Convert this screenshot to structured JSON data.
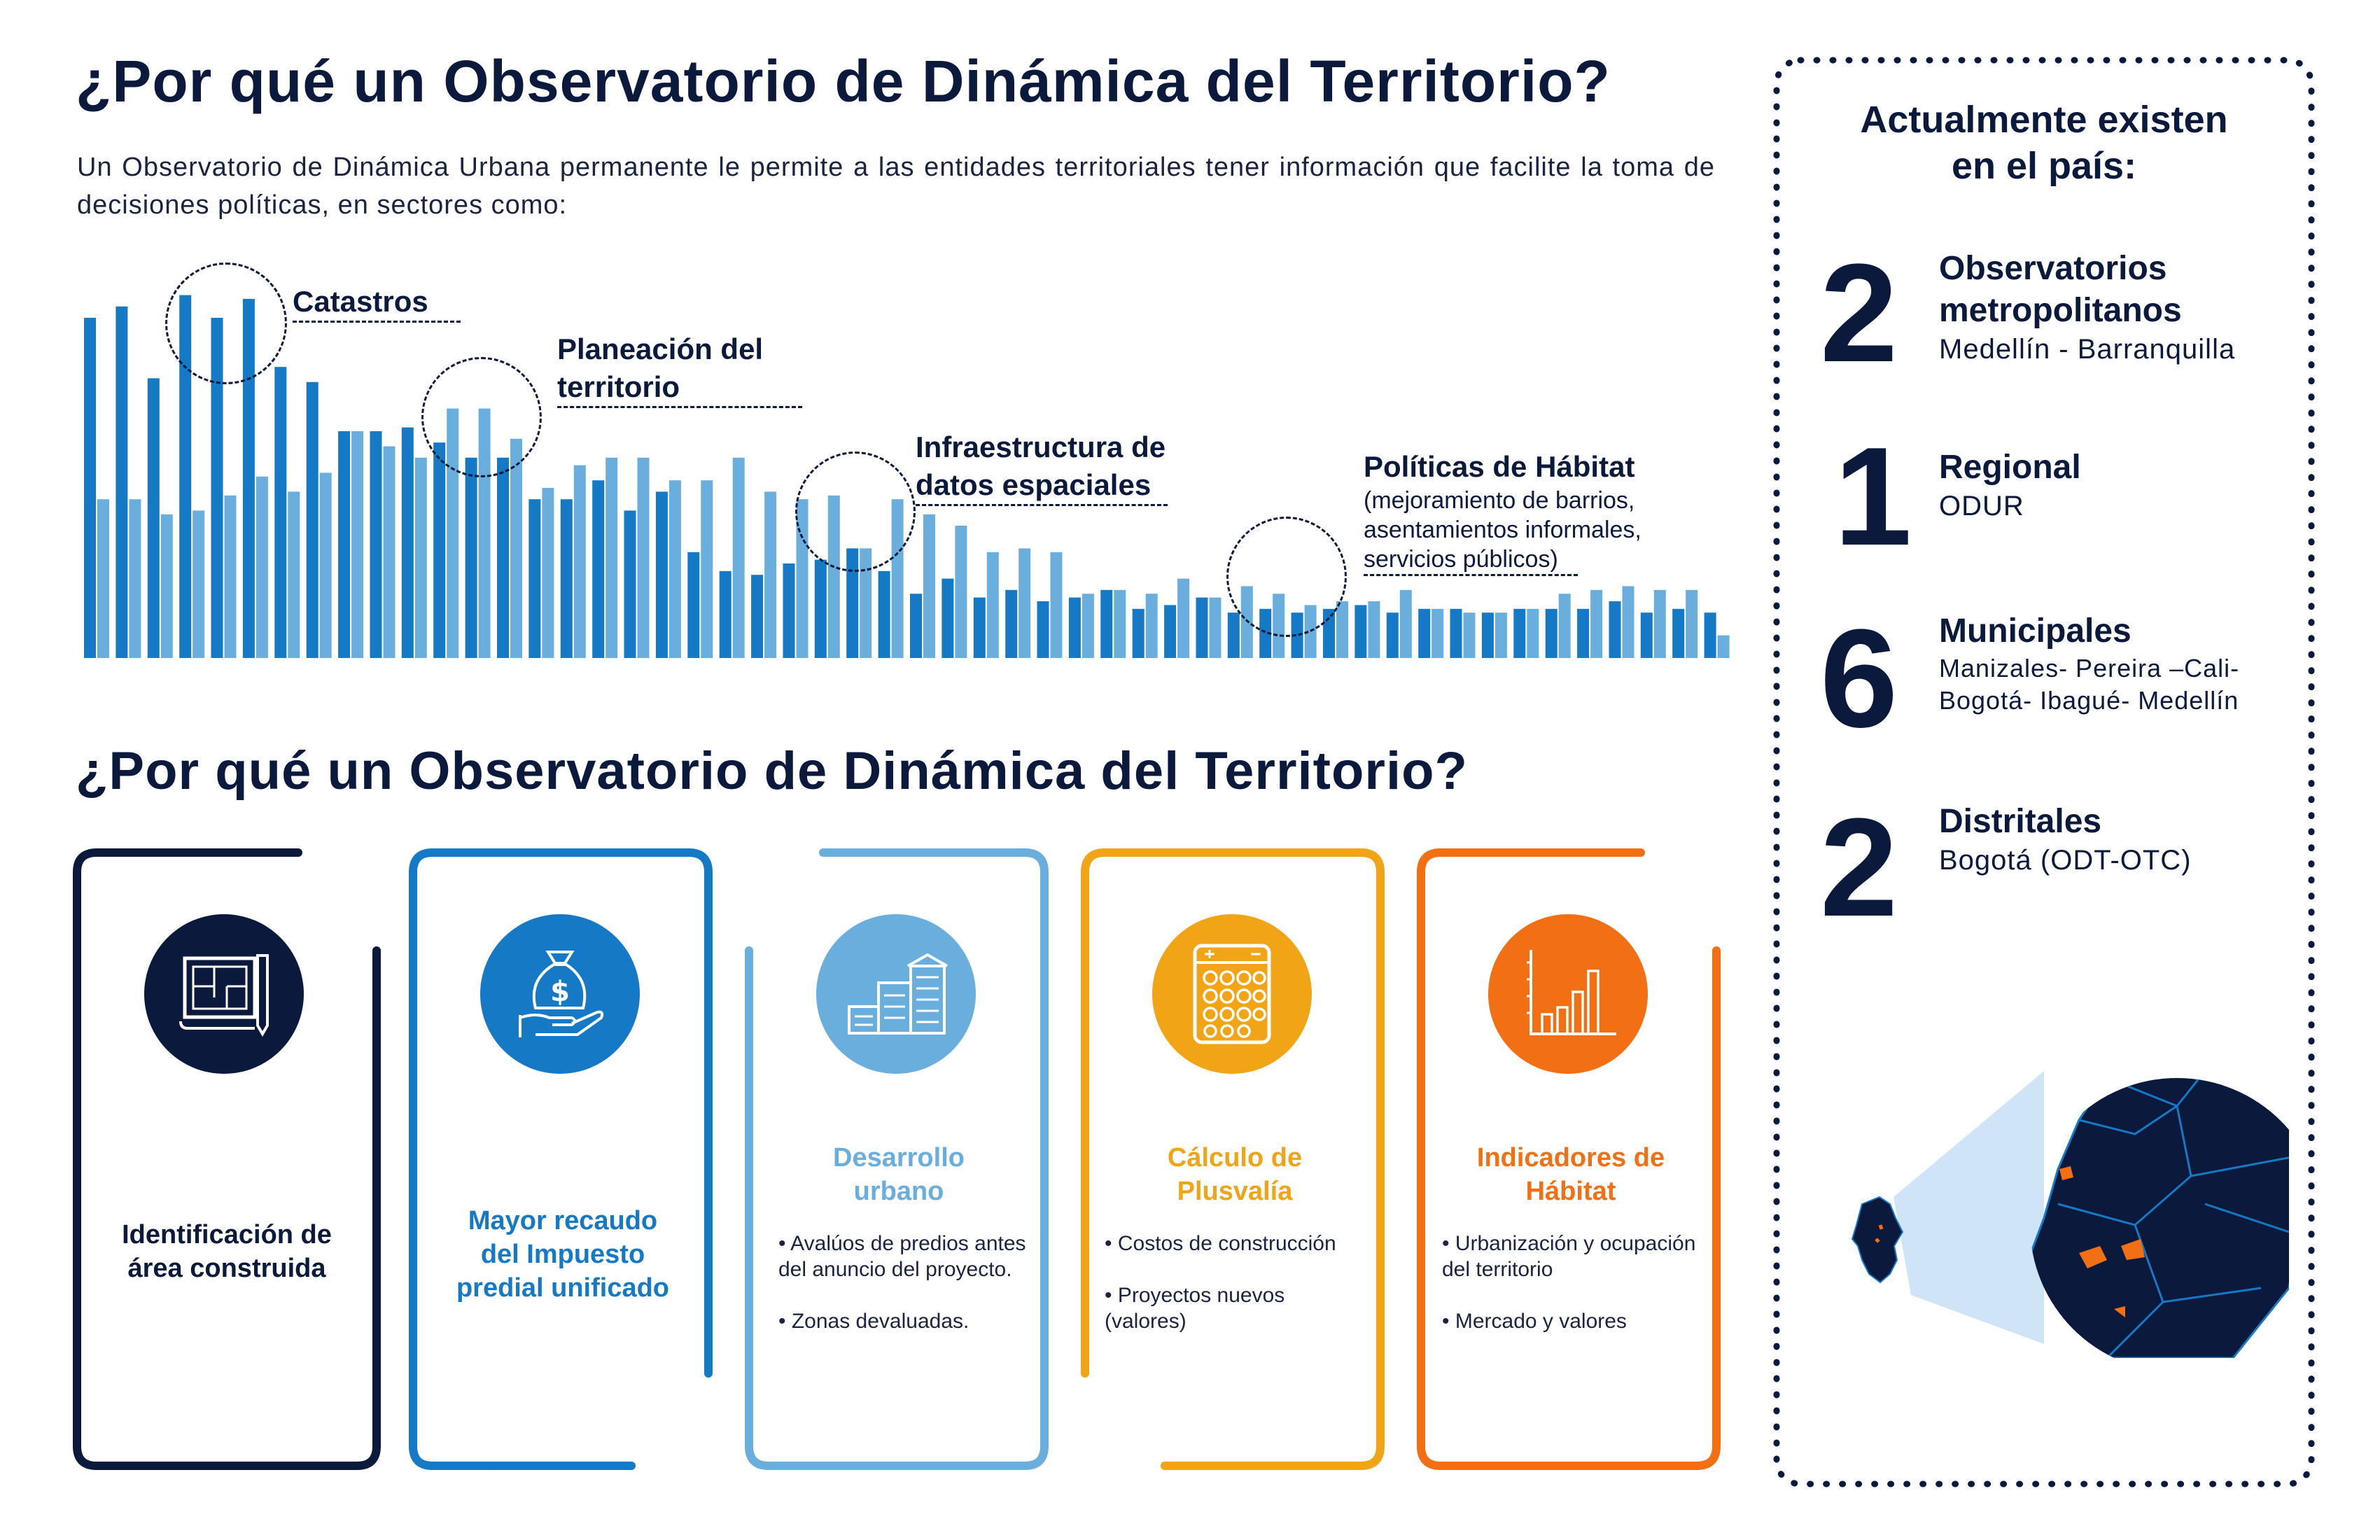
{
  "title_top": "¿Por qué un Observatorio de Dinámica del Territorio?",
  "intro": "Un Observatorio de Dinámica Urbana permanente le permite a las entidades territoriales tener información que facilite la toma de decisiones políticas, en sectores como:",
  "callouts": {
    "catastros": "Catastros",
    "planeacion": [
      "Planeación del",
      "territorio"
    ],
    "infraestructura": [
      "Infraestructura de",
      "datos espaciales"
    ],
    "politicas_title": "Políticas de Hábitat",
    "politicas_sub": [
      "(mejoramiento de barrios,",
      "asentamientos informales,",
      "servicios públicos)"
    ]
  },
  "title_mid": "¿Por qué un Observatorio de Dinámica del Territorio?",
  "cards": [
    {
      "title": [
        "Identificación de",
        "área construida"
      ],
      "color": "#0b1a3c",
      "icon": "blueprint-icon",
      "bullets": []
    },
    {
      "title": [
        "Mayor recaudo",
        "del Impuesto",
        "predial unificado"
      ],
      "color": "#1579c6",
      "icon": "money-bag-hand-icon",
      "bullets": []
    },
    {
      "title": [
        "Desarrollo",
        "urbano"
      ],
      "color": "#6aaede",
      "icon": "buildings-icon",
      "bullets": [
        "• Avalúos de predios antes del anuncio del proyecto.",
        "• Zonas devaluadas."
      ]
    },
    {
      "title": [
        "Cálculo de",
        "Plusvalía"
      ],
      "color": "#f0a416",
      "icon": "calculator-icon",
      "bullets": [
        "• Costos de construcción",
        "• Proyectos nuevos (valores)"
      ]
    },
    {
      "title": [
        "Indicadores de",
        "Hábitat"
      ],
      "color": "#f26f14",
      "icon": "bar-chart-icon",
      "bullets": [
        "• Urbanización y ocupación del territorio",
        "• Mercado y valores"
      ]
    }
  ],
  "side": {
    "heading": [
      "Actualmente existen",
      "en el país:"
    ],
    "stats": [
      {
        "num": "2",
        "title": [
          "Observatorios",
          "metropolitanos"
        ],
        "sub": [
          "Medellín - Barranquilla"
        ]
      },
      {
        "num": "1",
        "title": [
          "Regional"
        ],
        "sub": [
          "ODUR"
        ]
      },
      {
        "num": "6",
        "title": [
          "Municipales"
        ],
        "sub": [
          "Manizales- Pereira –Cali-",
          "Bogotá- Ibagué- Medellín"
        ]
      },
      {
        "num": "2",
        "title": [
          "Distritales"
        ],
        "sub": [
          "Bogotá (ODT-OTC)"
        ]
      }
    ]
  },
  "colors": {
    "navy": "#0b1a3c",
    "blue": "#1579c6",
    "light_blue": "#6aaede",
    "yellow": "#f0a416",
    "orange": "#f26f14"
  },
  "chart_data": {
    "type": "bar",
    "title": "",
    "xlabel": "",
    "ylabel": "",
    "grid": false,
    "note": "decorative paired bar background",
    "ylim": [
      0,
      100
    ],
    "series": [
      {
        "values": [
          90,
          93,
          74,
          96,
          90,
          95,
          77,
          73,
          60,
          60,
          61,
          57,
          53,
          53,
          42,
          42,
          47,
          39,
          44,
          28,
          23,
          22,
          25,
          26,
          29,
          23,
          17,
          21,
          16,
          18,
          15,
          16,
          18,
          13,
          14,
          16,
          12,
          13,
          12,
          13,
          14,
          12,
          13,
          13,
          12,
          13,
          13,
          13,
          15,
          12,
          13,
          12
        ]
      },
      {
        "values": [
          42,
          42,
          38,
          39,
          43,
          48,
          44,
          49,
          60,
          56,
          53,
          66,
          66,
          58,
          45,
          51,
          53,
          53,
          47,
          47,
          53,
          44,
          42,
          43,
          29,
          42,
          38,
          35,
          28,
          29,
          28,
          17,
          18,
          17,
          21,
          16,
          19,
          17,
          14,
          15,
          15,
          18,
          13,
          12,
          12,
          13,
          17,
          18,
          19,
          18,
          18,
          6
        ]
      }
    ]
  }
}
